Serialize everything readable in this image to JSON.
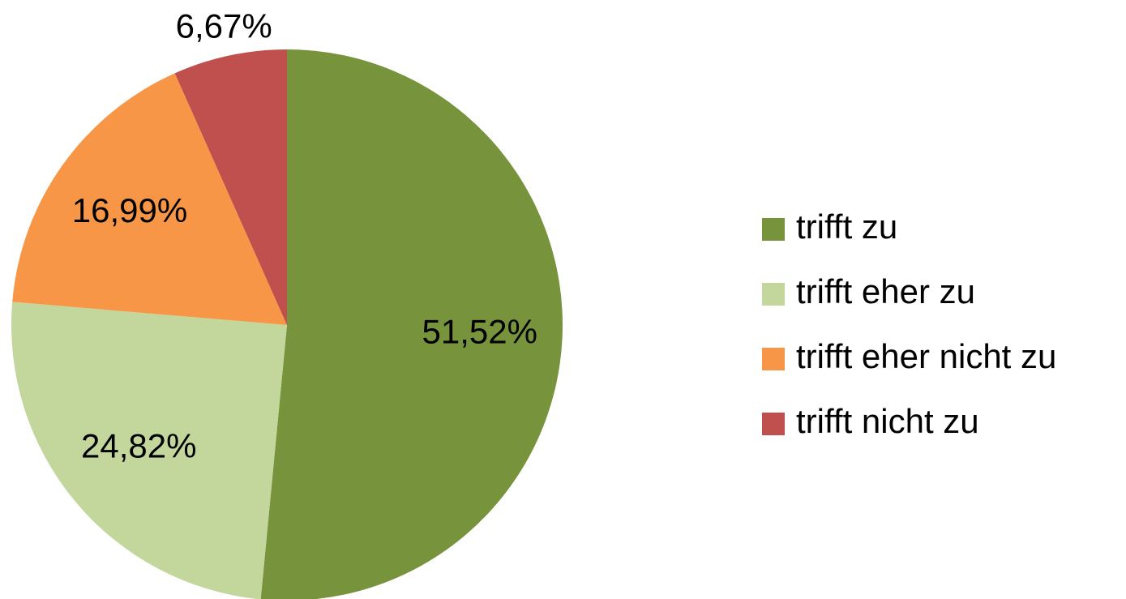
{
  "chart_data": {
    "type": "pie",
    "categories": [
      "trifft zu",
      "trifft eher zu",
      "trifft eher nicht zu",
      "trifft nicht zu"
    ],
    "values": [
      51.52,
      24.82,
      16.99,
      6.67
    ],
    "value_labels": [
      "51,52%",
      "24,82%",
      "16,99%",
      "6,67%"
    ],
    "colors": [
      "#77933c",
      "#c3d69b",
      "#f79646",
      "#c0504d"
    ],
    "legend": "right"
  }
}
